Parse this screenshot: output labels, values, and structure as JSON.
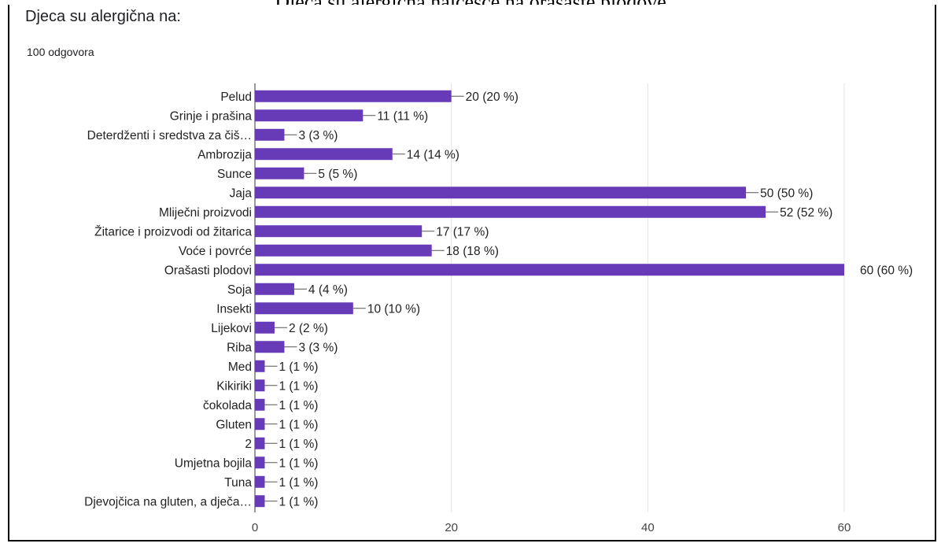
{
  "page": {
    "cut_caption": "Djeca su alergična najčešće na orašaste plodove"
  },
  "chart_data": {
    "type": "bar",
    "orientation": "horizontal",
    "title": "Djeca su alergična na:",
    "subtitle": "100 odgovora",
    "categories": [
      "Pelud",
      "Grinje i prašina",
      "Deterdženti i sredstva za čiš…",
      "Ambrozija",
      "Sunce",
      "Jaja",
      "Mliječni proizvodi",
      "Žitarice i proizvodi od žitarica",
      "Voće i povrće",
      "Orašasti plodovi",
      "Soja",
      "Insekti",
      "Lijekovi",
      "Riba",
      "Med",
      "Kikiriki",
      "čokolada",
      "Gluten",
      "2",
      "Umjetna bojila",
      "Tuna",
      "Djevojčica na gluten, a dječa…"
    ],
    "values": [
      20,
      11,
      3,
      14,
      5,
      50,
      52,
      17,
      18,
      60,
      4,
      10,
      2,
      3,
      1,
      1,
      1,
      1,
      1,
      1,
      1,
      1
    ],
    "data_labels": [
      "20 (20 %)",
      "11 (11 %)",
      "3 (3 %)",
      "14 (14 %)",
      "5 (5 %)",
      "50 (50 %)",
      "52 (52 %)",
      "17 (17 %)",
      "18 (18 %)",
      "60 (60 %)",
      "4 (4 %)",
      "10 (10 %)",
      "2 (2 %)",
      "3 (3 %)",
      "1 (1 %)",
      "1 (1 %)",
      "1 (1 %)",
      "1 (1 %)",
      "1 (1 %)",
      "1 (1 %)",
      "1 (1 %)",
      "1 (1 %)"
    ],
    "xlim": [
      0,
      60
    ],
    "xticks": [
      0,
      20,
      40,
      60
    ],
    "xtick_labels": [
      "0",
      "20",
      "40",
      "60"
    ],
    "grid": true,
    "bar_color": "#673ab7"
  }
}
